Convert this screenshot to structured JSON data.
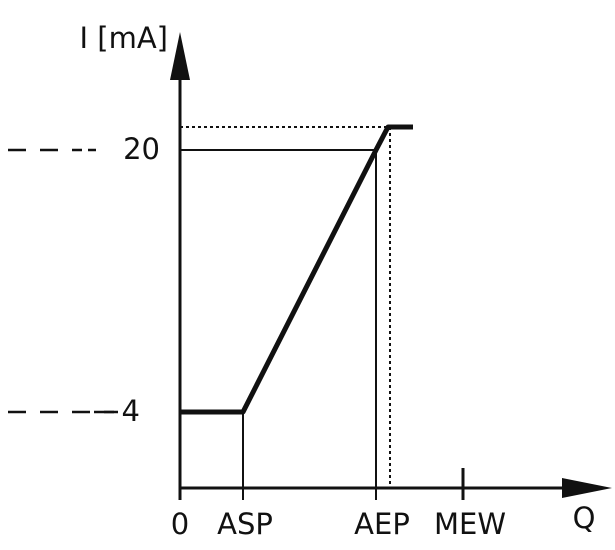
{
  "axes": {
    "y_label": "I [mA]",
    "x_label": "Q"
  },
  "y_labels": [
    "20",
    "4"
  ],
  "x_labels": [
    "0",
    "ASP",
    "AEP",
    "MEW"
  ]
}
